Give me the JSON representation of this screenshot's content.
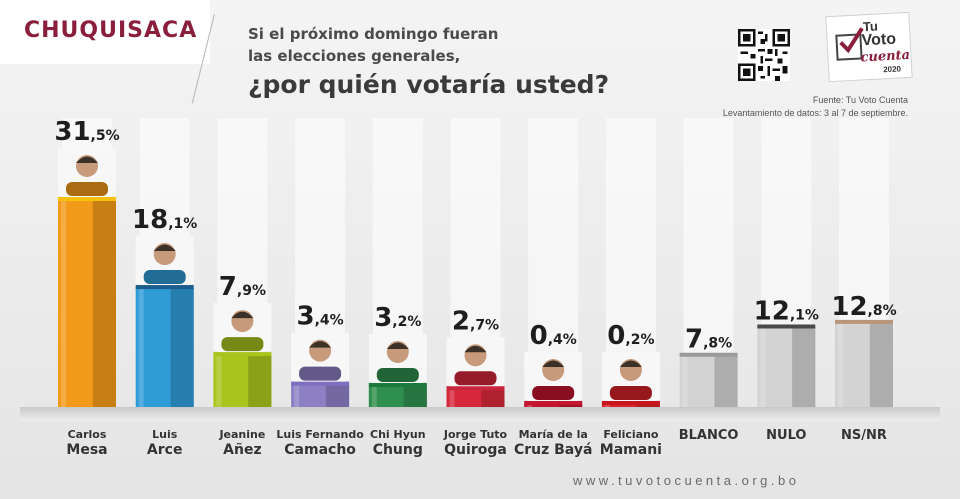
{
  "header": {
    "region": "CHUQUISACA",
    "question_line1": "Si el próximo domingo fueran",
    "question_line2": "las elecciones generales,",
    "question_line3": "¿por quién votaría usted?",
    "source": "Fuente: Tu Voto Cuenta",
    "survey_dates": "Levantamiento de datos: 3 al 7 de septiembre."
  },
  "logo": {
    "tu": "Tu",
    "voto": "Voto",
    "cuenta": "cuenta",
    "year": "2020"
  },
  "footer": {
    "url": "www.tuvotocuenta.org.bo"
  },
  "chart_data": {
    "type": "bar",
    "categories": [
      [
        "Carlos",
        "Mesa"
      ],
      [
        "Luis",
        "Arce"
      ],
      [
        "Jeanine",
        "Añez"
      ],
      [
        "Luis Fernando",
        "Camacho"
      ],
      [
        "Chi Hyun",
        "Chung"
      ],
      [
        "Jorge Tuto",
        "Quiroga"
      ],
      [
        "María de la",
        "Cruz Bayá"
      ],
      [
        "Feliciano",
        "Mamani"
      ],
      [
        "",
        "BLANCO"
      ],
      [
        "",
        "NULO"
      ],
      [
        "",
        "NS/NR"
      ]
    ],
    "values": [
      31.5,
      18.1,
      7.9,
      3.4,
      3.2,
      2.7,
      0.4,
      0.2,
      7.8,
      12.1,
      12.8
    ],
    "value_labels": [
      [
        "31",
        ",5%"
      ],
      [
        "18",
        ",1%"
      ],
      [
        "7",
        ",9%"
      ],
      [
        "3",
        ",4%"
      ],
      [
        "3",
        ",2%"
      ],
      [
        "2",
        ",7%"
      ],
      [
        "0",
        ",4%"
      ],
      [
        "0",
        ",2%"
      ],
      [
        "7",
        ",8%"
      ],
      [
        "12",
        ",1%"
      ],
      [
        "12",
        ",8%"
      ]
    ],
    "has_photo": [
      true,
      true,
      true,
      true,
      true,
      true,
      true,
      true,
      false,
      false,
      false
    ],
    "colors": [
      "#f39a1a",
      "#2f9bd7",
      "#a9c41c",
      "#8c7fc4",
      "#2f8f4e",
      "#d7283b",
      "#c4162e",
      "#d8242a",
      "#d3d3d3",
      "#d3d3d3",
      "#d3d3d3"
    ],
    "cap_colors": [
      "#f6c10d",
      "#1d5d8e",
      "#a9c41c",
      "#7e6fbf",
      "#1e7a3c",
      "#c9253d",
      "#c4162e",
      "#c8161e",
      "#9a9a9a",
      "#4a4a4a",
      "#b9967a"
    ],
    "ylim": [
      0,
      32
    ],
    "grid": false,
    "legend": "none"
  }
}
